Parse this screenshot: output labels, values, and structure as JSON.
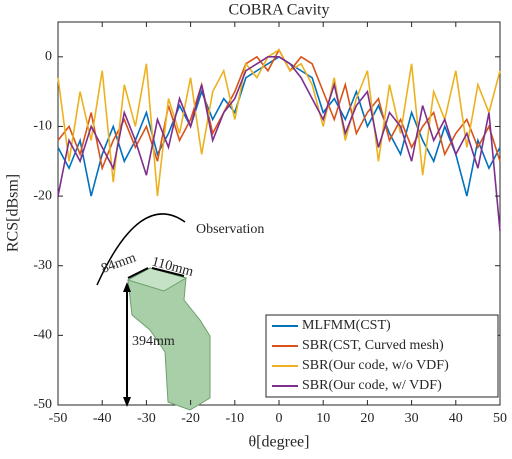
{
  "chart_data": {
    "type": "line",
    "title": "COBRA Cavity",
    "x_label": "θ[degree]",
    "y_label": "RCS[dBsm]",
    "x": [
      -50,
      -47.5,
      -45,
      -42.5,
      -40,
      -37.5,
      -35,
      -32.5,
      -30,
      -27.5,
      -25,
      -22.5,
      -20,
      -17.5,
      -15,
      -12.5,
      -10,
      -7.5,
      -5,
      -2.5,
      0,
      2.5,
      5,
      7.5,
      10,
      12.5,
      15,
      17.5,
      20,
      22.5,
      25,
      27.5,
      30,
      32.5,
      35,
      37.5,
      40,
      42.5,
      45,
      47.5,
      50
    ],
    "series": [
      {
        "name": "MLFMM(CST)",
        "color": "#0072bd",
        "values": [
          -13,
          -16,
          -12,
          -20,
          -14,
          -10,
          -15,
          -12,
          -8,
          -14,
          -11,
          -7,
          -10,
          -5,
          -9,
          -6,
          -8,
          -3,
          -2,
          -1,
          0,
          -1,
          -2,
          -3,
          -8,
          -6,
          -9,
          -5,
          -10,
          -7,
          -11,
          -14,
          -8,
          -12,
          -15,
          -10,
          -14,
          -20,
          -12,
          -16,
          -13
        ]
      },
      {
        "name": "SBR(CST, Curved mesh)",
        "color": "#d95319",
        "values": [
          -12,
          -10,
          -14,
          -8,
          -16,
          -12,
          -9,
          -13,
          -10,
          -15,
          -7,
          -12,
          -9,
          -4,
          -11,
          -8,
          -5,
          -1,
          0,
          -2,
          1,
          -2,
          0,
          -1,
          -5,
          -9,
          -4,
          -11,
          -8,
          -6,
          -12,
          -9,
          -13,
          -10,
          -8,
          -14,
          -11,
          -9,
          -13,
          -10,
          -15
        ]
      },
      {
        "name": "SBR(Our code, w/o VDF)",
        "color": "#edb120",
        "values": [
          -3,
          -15,
          -5,
          -12,
          -2,
          -18,
          -4,
          -10,
          -1,
          -20,
          -6,
          -11,
          -3,
          -14,
          -5,
          -2,
          -9,
          -1,
          -3,
          0,
          1,
          -2,
          -1,
          -4,
          -10,
          -3,
          -12,
          -6,
          -2,
          -15,
          -4,
          -11,
          -1,
          -17,
          -5,
          -9,
          -2,
          -13,
          -4,
          -8,
          -2
        ]
      },
      {
        "name": "SBR(Our code, w/ VDF)",
        "color": "#7e2f8e",
        "values": [
          -20,
          -12,
          -15,
          -10,
          -13,
          -16,
          -8,
          -12,
          -17,
          -9,
          -13,
          -6,
          -10,
          -4,
          -12,
          -8,
          -6,
          -2,
          -1,
          0,
          0,
          -1,
          -3,
          -6,
          -9,
          -4,
          -11,
          -7,
          -5,
          -13,
          -8,
          -10,
          -15,
          -7,
          -12,
          -9,
          -14,
          -11,
          -16,
          -8,
          -25
        ]
      }
    ],
    "xlim": [
      -50,
      50
    ],
    "xticks": [
      -50,
      -40,
      -30,
      -20,
      -10,
      0,
      10,
      20,
      30,
      40,
      50
    ],
    "ylim": [
      -50,
      5
    ],
    "yticks": [
      -50,
      -40,
      -30,
      -20,
      -10,
      0
    ],
    "grid": false,
    "legend_position": "lower right",
    "annotations": [
      "Observation",
      "84mm",
      "110mm",
      "394mm"
    ]
  }
}
